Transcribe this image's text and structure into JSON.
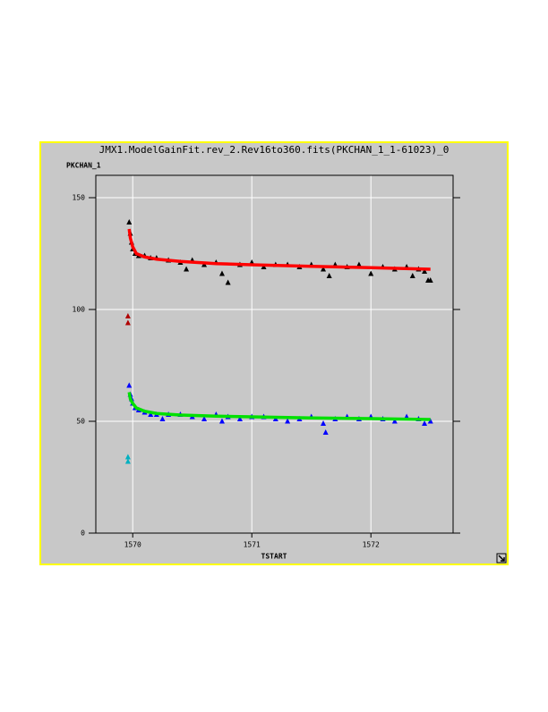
{
  "chart_data": {
    "type": "scatter",
    "title": "JMX1.ModelGainFit.rev_2.Rev16to360.fits(PKCHAN_1_1-61023)_0",
    "y_label": "PKCHAN_1",
    "x_label": "TSTART",
    "xlim": [
      1569.69,
      1572.69
    ],
    "ylim": [
      0,
      160
    ],
    "xticks": [
      1570,
      1571,
      1572
    ],
    "yticks": [
      0,
      50,
      100,
      150
    ],
    "grid": true,
    "series": [
      {
        "mode": "markers",
        "color": "#000000",
        "x": [
          1569.97,
          1569.98,
          1569.99,
          1570.0,
          1570.02,
          1570.05,
          1570.1,
          1570.15,
          1570.2,
          1570.3,
          1570.4,
          1570.45,
          1570.5,
          1570.6,
          1570.7,
          1570.75,
          1570.8,
          1570.9,
          1571.0,
          1571.1,
          1571.2,
          1571.3,
          1571.4,
          1571.5,
          1571.6,
          1571.65,
          1571.7,
          1571.8,
          1571.9,
          1572.0,
          1572.1,
          1572.2,
          1572.3,
          1572.35,
          1572.4,
          1572.45,
          1572.48,
          1572.5
        ],
        "values": [
          139,
          134,
          130,
          127,
          125,
          124,
          124,
          123,
          123,
          122,
          121,
          118,
          122,
          120,
          121,
          116,
          112,
          120,
          121,
          119,
          120,
          120,
          119,
          120,
          118,
          115,
          120,
          119,
          120,
          116,
          119,
          118,
          119,
          115,
          118,
          117,
          113,
          113
        ]
      },
      {
        "mode": "line",
        "color": "#ff0000",
        "x": [
          1569.97,
          1569.98,
          1570.0,
          1570.03,
          1570.1,
          1570.2,
          1570.4,
          1570.7,
          1571.0,
          1571.5,
          1572.0,
          1572.5
        ],
        "values": [
          136,
          132,
          128,
          125,
          123.5,
          122.5,
          121.5,
          120.5,
          120,
          119.3,
          118.7,
          118
        ]
      },
      {
        "mode": "markers",
        "color": "#0000ff",
        "x": [
          1569.97,
          1569.98,
          1569.99,
          1570.0,
          1570.02,
          1570.05,
          1570.1,
          1570.15,
          1570.2,
          1570.25,
          1570.3,
          1570.4,
          1570.5,
          1570.6,
          1570.7,
          1570.75,
          1570.8,
          1570.9,
          1571.0,
          1571.1,
          1571.2,
          1571.3,
          1571.4,
          1571.5,
          1571.6,
          1571.62,
          1571.7,
          1571.8,
          1571.9,
          1572.0,
          1572.1,
          1572.2,
          1572.3,
          1572.4,
          1572.45,
          1572.5
        ],
        "values": [
          66,
          62,
          60,
          58,
          56,
          55,
          54,
          53,
          53,
          51,
          53,
          53,
          52,
          51,
          53,
          50,
          52,
          51,
          52,
          52,
          51,
          50,
          51,
          52,
          49,
          45,
          51,
          52,
          51,
          52,
          51,
          50,
          52,
          51,
          49,
          50
        ]
      },
      {
        "mode": "line",
        "color": "#00e000",
        "x": [
          1569.97,
          1569.98,
          1570.0,
          1570.03,
          1570.1,
          1570.2,
          1570.4,
          1570.7,
          1571.0,
          1571.5,
          1572.0,
          1572.5
        ],
        "values": [
          63,
          60,
          58,
          56,
          54.5,
          53.5,
          52.8,
          52.3,
          52,
          51.5,
          51.2,
          50.8
        ]
      },
      {
        "mode": "markers",
        "color": "#b00000",
        "x": [
          1569.96,
          1569.96
        ],
        "values": [
          97,
          94
        ]
      },
      {
        "mode": "markers",
        "color": "#00b0c0",
        "x": [
          1569.96,
          1569.96
        ],
        "values": [
          34,
          32
        ]
      }
    ]
  }
}
